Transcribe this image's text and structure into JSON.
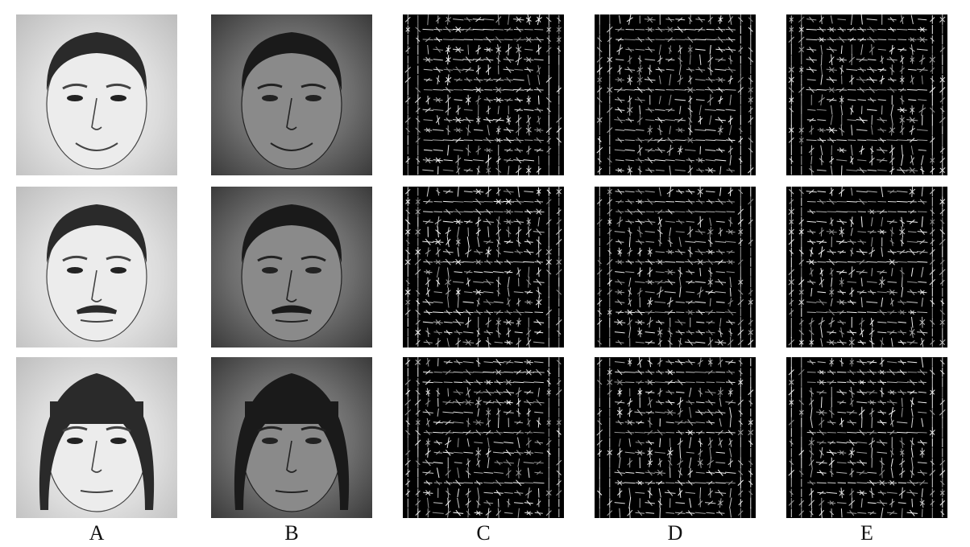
{
  "columns": [
    {
      "id": "A",
      "label": "A",
      "kind": "sketch"
    },
    {
      "id": "B",
      "label": "B",
      "kind": "photo"
    },
    {
      "id": "C",
      "label": "C",
      "kind": "hog"
    },
    {
      "id": "D",
      "label": "D",
      "kind": "hog"
    },
    {
      "id": "E",
      "label": "E",
      "kind": "hog"
    }
  ],
  "rows": [
    {
      "id": "row-1",
      "subject": "man-smiling"
    },
    {
      "id": "row-2",
      "subject": "man-mustache"
    },
    {
      "id": "row-3",
      "subject": "woman-bangs"
    }
  ],
  "colors": {
    "background": "#ffffff",
    "hog_background": "#000000",
    "hog_stroke": "#ffffff"
  }
}
